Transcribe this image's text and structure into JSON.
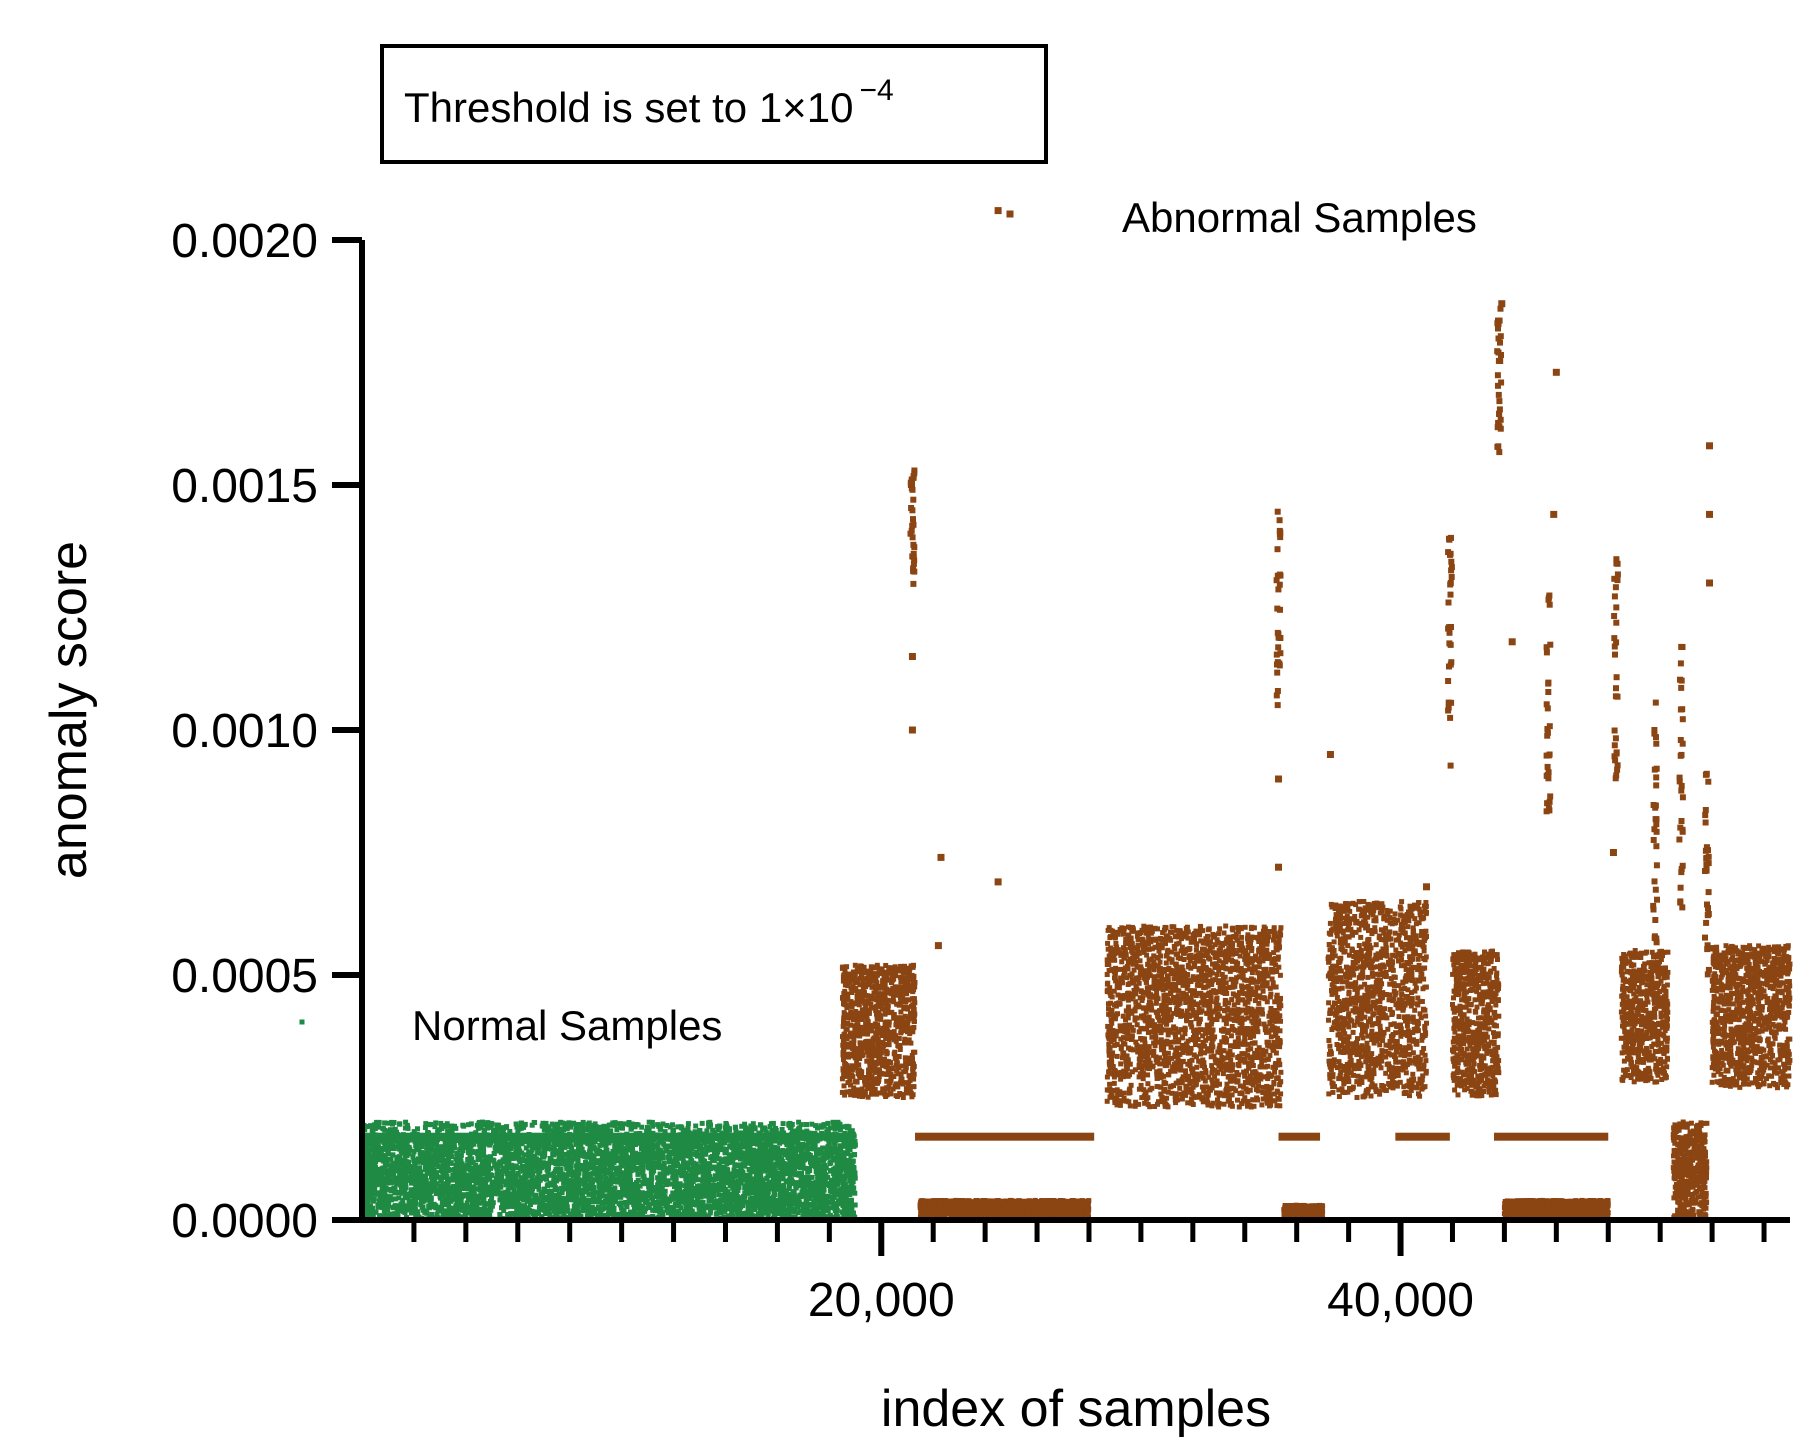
{
  "chart_data": {
    "type": "scatter",
    "title": "",
    "xlabel": "index of samples",
    "ylabel": "anomaly score",
    "xlim": [
      0,
      55000
    ],
    "ylim": [
      0,
      0.002
    ],
    "x_ticks": [
      {
        "value": 20000,
        "label": "20,000"
      },
      {
        "value": 40000,
        "label": "40,000"
      }
    ],
    "x_minor_tick_step": 2000,
    "y_ticks": [
      {
        "value": 0.0,
        "label": "0.0000"
      },
      {
        "value": 0.0005,
        "label": "0.0005"
      },
      {
        "value": 0.001,
        "label": "0.0010"
      },
      {
        "value": 0.0015,
        "label": "0.0015"
      },
      {
        "value": 0.002,
        "label": "0.0020"
      }
    ],
    "grid": false,
    "annotation": {
      "text": "Threshold is set to 1×10",
      "exponent": "−4"
    },
    "legend": [
      {
        "name": "Abnormal Samples",
        "color": "#8B4513"
      },
      {
        "name": "Normal Samples",
        "color": "#1E8A43"
      }
    ],
    "series": [
      {
        "name": "Normal Samples",
        "color": "#1E8A43",
        "segments": [
          {
            "x_start": 0,
            "x_end": 19000,
            "min": 0.0,
            "max": 0.00017,
            "spread_max": 0.0002
          }
        ],
        "bands": [
          {
            "x_start": 0,
            "x_end": 19000,
            "y": 0.00017
          }
        ],
        "outliers": []
      },
      {
        "name": "Abnormal Samples",
        "color": "#8B4513",
        "segments": [
          {
            "x_start": 18500,
            "x_end": 21300,
            "min": 0.00025,
            "max": 0.00052
          },
          {
            "x_start": 28700,
            "x_end": 35400,
            "min": 0.00023,
            "max": 0.0006
          },
          {
            "x_start": 37200,
            "x_end": 41000,
            "min": 0.00025,
            "max": 0.00065
          },
          {
            "x_start": 42000,
            "x_end": 43800,
            "min": 0.00025,
            "max": 0.00055
          },
          {
            "x_start": 48500,
            "x_end": 50300,
            "min": 0.00028,
            "max": 0.00055
          },
          {
            "x_start": 52000,
            "x_end": 55000,
            "min": 0.00027,
            "max": 0.00056
          },
          {
            "x_start": 21500,
            "x_end": 28000,
            "min": 0.0,
            "max": 4e-05
          },
          {
            "x_start": 35500,
            "x_end": 37000,
            "min": 0.0,
            "max": 3e-05
          },
          {
            "x_start": 44000,
            "x_end": 48000,
            "min": 0.0,
            "max": 4e-05
          },
          {
            "x_start": 50500,
            "x_end": 51800,
            "min": 0.0,
            "max": 0.0002
          }
        ],
        "bands": [
          {
            "x_start": 21300,
            "x_end": 28200,
            "y": 0.00017
          },
          {
            "x_start": 35300,
            "x_end": 36900,
            "y": 0.00017
          },
          {
            "x_start": 39800,
            "x_end": 41900,
            "y": 0.00017
          },
          {
            "x_start": 43600,
            "x_end": 48000,
            "y": 0.00017
          }
        ],
        "columns": [
          {
            "x": 21200,
            "y_min": 0.00127,
            "y_max": 0.00158
          },
          {
            "x": 35300,
            "y_min": 0.00105,
            "y_max": 0.00145
          },
          {
            "x": 41900,
            "y_min": 0.0009,
            "y_max": 0.0014
          },
          {
            "x": 43800,
            "y_min": 0.00155,
            "y_max": 0.00186
          },
          {
            "x": 45700,
            "y_min": 0.00082,
            "y_max": 0.00128
          },
          {
            "x": 48300,
            "y_min": 0.0009,
            "y_max": 0.00135
          },
          {
            "x": 49800,
            "y_min": 0.00055,
            "y_max": 0.00113
          },
          {
            "x": 50800,
            "y_min": 0.0006,
            "y_max": 0.00118
          },
          {
            "x": 51800,
            "y_min": 0.0005,
            "y_max": 0.00095
          }
        ],
        "outliers": [
          {
            "x": 24500,
            "y": 0.00206
          },
          {
            "x": 22300,
            "y": 0.00074
          },
          {
            "x": 24500,
            "y": 0.00069
          },
          {
            "x": 21200,
            "y": 0.001
          },
          {
            "x": 21200,
            "y": 0.00115
          },
          {
            "x": 22200,
            "y": 0.00056
          },
          {
            "x": 37300,
            "y": 0.00095
          },
          {
            "x": 43900,
            "y": 0.00187
          },
          {
            "x": 46000,
            "y": 0.00173
          },
          {
            "x": 45900,
            "y": 0.00144
          },
          {
            "x": 51900,
            "y": 0.00158
          },
          {
            "x": 51900,
            "y": 0.00144
          },
          {
            "x": 51900,
            "y": 0.0013
          },
          {
            "x": 44300,
            "y": 0.00118
          },
          {
            "x": 35300,
            "y": 0.0009
          },
          {
            "x": 35300,
            "y": 0.00072
          },
          {
            "x": 41000,
            "y": 0.00068
          },
          {
            "x": 48200,
            "y": 0.00075
          }
        ]
      }
    ]
  }
}
